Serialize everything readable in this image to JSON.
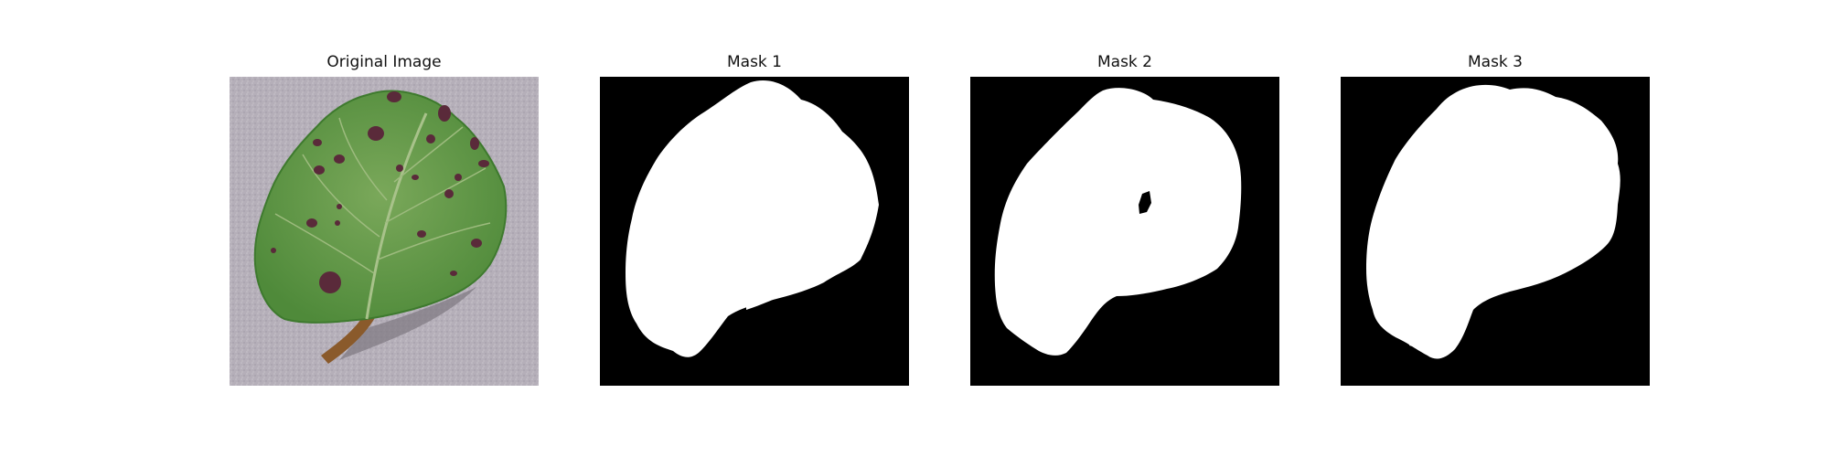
{
  "figure": {
    "panels": [
      {
        "title": "Original Image",
        "kind": "photo"
      },
      {
        "title": "Mask 1",
        "kind": "mask"
      },
      {
        "title": "Mask 2",
        "kind": "mask"
      },
      {
        "title": "Mask 3",
        "kind": "mask"
      }
    ]
  },
  "colors": {
    "background": "#ffffff",
    "mask_background": "#000000",
    "mask_foreground": "#ffffff",
    "leaf_green": "#5f9a45",
    "leaf_dark": "#3e7a2e",
    "stem_brown": "#8a5a2b",
    "spot_purple": "#5a2a3a",
    "surface_gray": "#b4aeb8"
  }
}
